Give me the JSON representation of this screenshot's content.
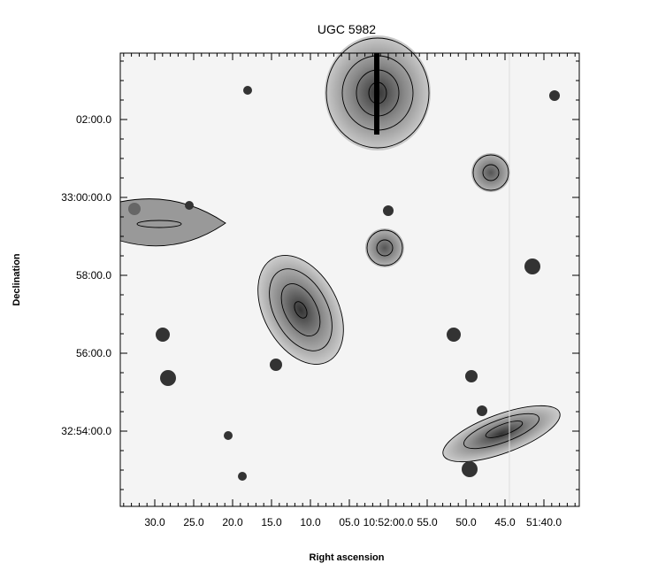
{
  "chart_data": {
    "type": "image",
    "title": "UGC 5982",
    "x_label": "Right ascension",
    "y_label": "Declination",
    "xtick_labels": [
      "30.0",
      "25.0",
      "20.0",
      "15.0",
      "10.0",
      "05.0",
      "10:52:00.0",
      "55.0",
      "50.0",
      "45.0",
      "51:40.0"
    ],
    "ytick_labels": [
      "02:00.0",
      "33:00:00.0",
      "58:00.0",
      "56:00.0",
      "32:54:00.0"
    ]
  }
}
